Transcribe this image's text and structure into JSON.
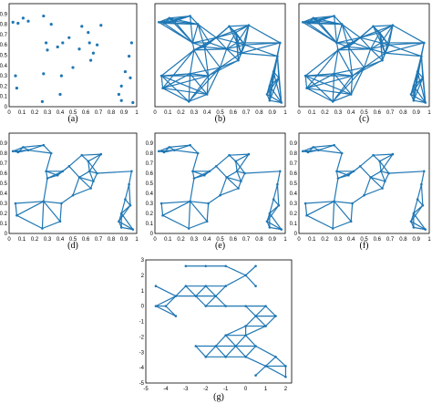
{
  "colors": {
    "edge": "#1f77b4",
    "node": "#1f77b4",
    "frame": "#000000"
  },
  "panels": [
    {
      "id": "a",
      "caption": "(a)",
      "mode": "points",
      "xticks": [
        "0",
        "0.1",
        "0.2",
        "0.3",
        "0.4",
        "0.5",
        "0.6",
        "0.7",
        "0.8",
        "0.9",
        "1"
      ],
      "yticks": [
        "0",
        "0.1",
        "0.2",
        "0.3",
        "0.4",
        "0.5",
        "0.6",
        "0.7",
        "0.8",
        "0.9"
      ],
      "xlim": [
        0,
        1
      ],
      "ylim": [
        0,
        1
      ]
    },
    {
      "id": "b",
      "caption": "(b)",
      "mode": "full",
      "xticks": [
        "0",
        "0.1",
        "0.2",
        "0.3",
        "0.4",
        "0.5",
        "0.6",
        "0.7",
        "0.8",
        "0.9",
        "1"
      ],
      "yticks": [],
      "xlim": [
        0,
        1
      ],
      "ylim": [
        0,
        1
      ]
    },
    {
      "id": "c",
      "caption": "(c)",
      "mode": "full",
      "xticks": [
        "0",
        "0.1",
        "0.2",
        "0.3",
        "0.4",
        "0.5",
        "0.6",
        "0.7",
        "0.8",
        "0.9",
        "1"
      ],
      "yticks": [],
      "xlim": [
        0,
        1
      ],
      "ylim": [
        0,
        1
      ]
    },
    {
      "id": "d",
      "caption": "(d)",
      "mode": "sparse",
      "xticks": [
        "0",
        "0.1",
        "0.2",
        "0.3",
        "0.4",
        "0.5",
        "0.6",
        "0.7",
        "0.8",
        "0.9",
        "1"
      ],
      "yticks": [
        "0",
        "0.1",
        "0.2",
        "0.3",
        "0.4",
        "0.5",
        "0.6",
        "0.7",
        "0.8",
        "0.9"
      ],
      "xlim": [
        0,
        1
      ],
      "ylim": [
        0,
        1
      ]
    },
    {
      "id": "e",
      "caption": "(e)",
      "mode": "sparse",
      "xticks": [
        "0",
        "0.1",
        "0.2",
        "0.3",
        "0.4",
        "0.5",
        "0.6",
        "0.7",
        "0.8",
        "0.9",
        "1"
      ],
      "yticks": [
        "0",
        "0.1",
        "0.2",
        "0.3",
        "0.4",
        "0.5",
        "0.6",
        "0.7",
        "0.8",
        "0.9"
      ],
      "xlim": [
        0,
        1
      ],
      "ylim": [
        0,
        1
      ]
    },
    {
      "id": "f",
      "caption": "(f)",
      "mode": "sparse",
      "xticks": [
        "0",
        "0.1",
        "0.2",
        "0.3",
        "0.4",
        "0.5",
        "0.6",
        "0.7",
        "0.8",
        "0.9",
        "1"
      ],
      "yticks": [
        "0",
        "0.1",
        "0.2",
        "0.3",
        "0.4",
        "0.5",
        "0.6",
        "0.7",
        "0.8",
        "0.9"
      ],
      "xlim": [
        0,
        1
      ],
      "ylim": [
        0,
        1
      ]
    },
    {
      "id": "g",
      "caption": "(g)",
      "mode": "lattice",
      "xticks": [
        "-5",
        "-4",
        "-3",
        "-2",
        "-1",
        "0",
        "1",
        "2"
      ],
      "yticks": [
        "3",
        "2",
        "1",
        "0",
        "-1",
        "-2",
        "-3",
        "-4",
        "-5"
      ],
      "xlim": [
        -5,
        2.3
      ],
      "ylim": [
        -5,
        3
      ]
    }
  ],
  "points": [
    [
      0.03,
      0.82
    ],
    [
      0.07,
      0.81
    ],
    [
      0.11,
      0.86
    ],
    [
      0.15,
      0.83
    ],
    [
      0.27,
      0.88
    ],
    [
      0.05,
      0.3
    ],
    [
      0.06,
      0.18
    ],
    [
      0.26,
      0.05
    ],
    [
      0.27,
      0.32
    ],
    [
      0.3,
      0.55
    ],
    [
      0.29,
      0.62
    ],
    [
      0.33,
      0.8
    ],
    [
      0.38,
      0.58
    ],
    [
      0.4,
      0.12
    ],
    [
      0.41,
      0.3
    ],
    [
      0.42,
      0.62
    ],
    [
      0.47,
      0.67
    ],
    [
      0.5,
      0.38
    ],
    [
      0.55,
      0.56
    ],
    [
      0.57,
      0.78
    ],
    [
      0.62,
      0.72
    ],
    [
      0.63,
      0.62
    ],
    [
      0.64,
      0.45
    ],
    [
      0.66,
      0.52
    ],
    [
      0.69,
      0.6
    ],
    [
      0.72,
      0.79
    ],
    [
      0.86,
      0.12
    ],
    [
      0.88,
      0.2
    ],
    [
      0.91,
      0.34
    ],
    [
      0.94,
      0.49
    ],
    [
      0.95,
      0.28
    ],
    [
      0.97,
      0.04
    ],
    [
      0.88,
      0.06
    ],
    [
      0.96,
      0.62
    ]
  ],
  "lattice_points": [
    [
      -4.5,
      1.3
    ],
    [
      -3.0,
      2.6
    ],
    [
      -2.0,
      2.6
    ],
    [
      -1.0,
      2.6
    ],
    [
      -1.0,
      1.3
    ],
    [
      -1.5,
      0.65
    ],
    [
      -2.0,
      1.3
    ],
    [
      -2.5,
      0.65
    ],
    [
      -3.0,
      1.3
    ],
    [
      -3.5,
      0.65
    ],
    [
      -4.0,
      0.0
    ],
    [
      -4.5,
      0.0
    ],
    [
      -3.5,
      -0.65
    ],
    [
      -2.0,
      0.0
    ],
    [
      -1.0,
      0.0
    ],
    [
      0.0,
      0.0
    ],
    [
      0.5,
      1.3
    ],
    [
      0.0,
      2.0
    ],
    [
      0.5,
      2.6
    ],
    [
      0.0,
      -1.3
    ],
    [
      1.0,
      -1.3
    ],
    [
      0.5,
      -0.65
    ],
    [
      1.5,
      -0.65
    ],
    [
      1.0,
      0.0
    ],
    [
      -2.5,
      -2.6
    ],
    [
      -1.5,
      -2.6
    ],
    [
      -0.5,
      -2.6
    ],
    [
      0.5,
      -2.6
    ],
    [
      0.0,
      -1.9
    ],
    [
      -1.0,
      -1.9
    ],
    [
      -2.0,
      -3.3
    ],
    [
      -1.0,
      -3.3
    ],
    [
      0.0,
      -3.3
    ],
    [
      1.5,
      -3.3
    ],
    [
      2.0,
      -3.9
    ],
    [
      1.0,
      -3.9
    ],
    [
      0.5,
      -4.5
    ],
    [
      2.0,
      -4.6
    ]
  ]
}
